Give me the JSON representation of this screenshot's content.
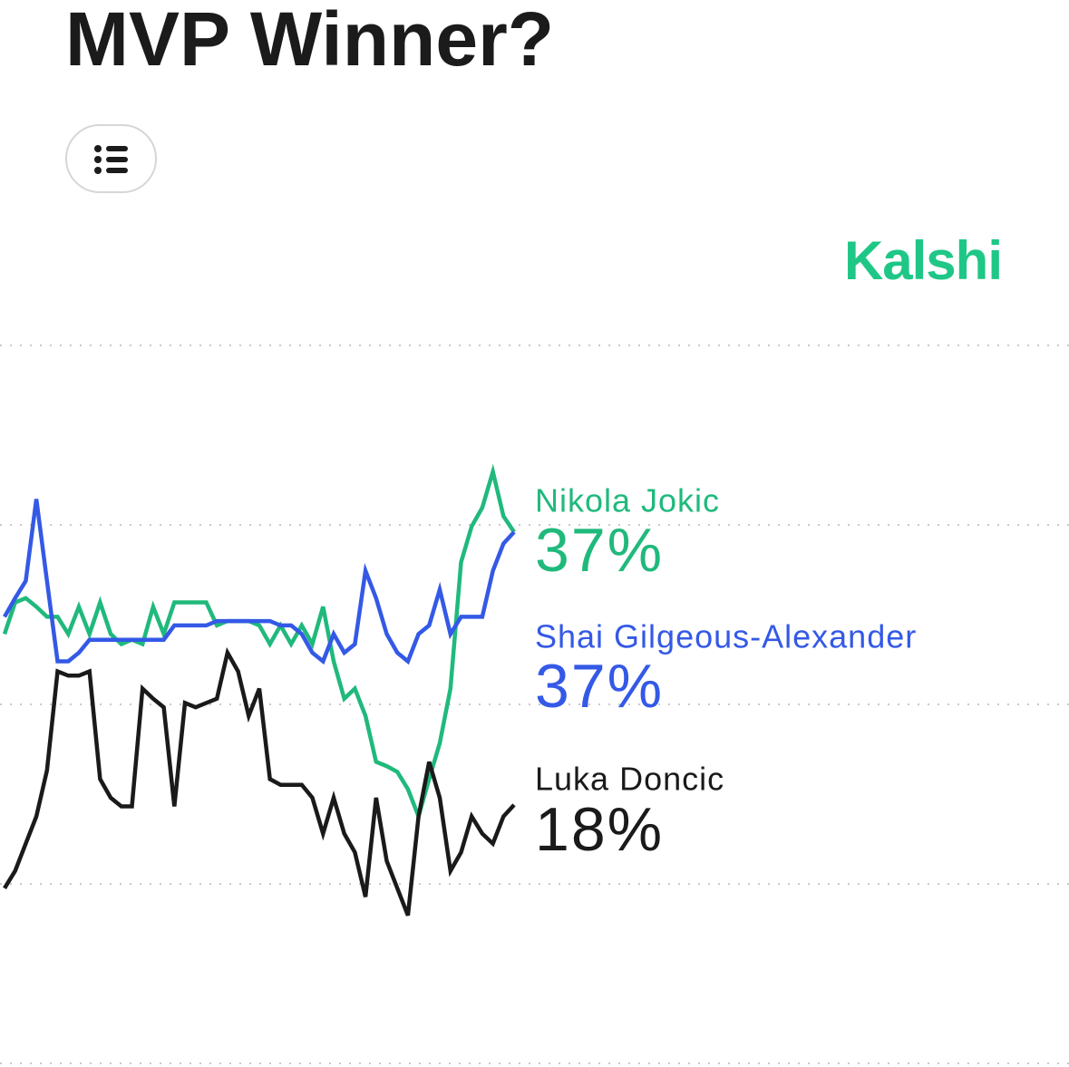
{
  "chart_data": {
    "type": "line",
    "title": "MVP Winner?",
    "brand": "Kalshi",
    "categories": [
      null,
      null,
      null,
      null,
      null,
      null,
      null,
      null,
      null,
      null,
      null,
      null,
      null,
      null,
      null,
      null,
      null,
      null,
      null,
      null,
      null,
      null,
      null,
      null,
      null,
      null,
      null,
      null,
      null,
      null,
      null,
      null,
      null,
      null,
      null,
      null,
      null,
      null,
      null,
      null,
      null,
      null,
      null,
      null,
      null,
      null,
      null,
      null,
      null
    ],
    "ylim": [
      0,
      50
    ],
    "yticks": [
      0,
      12.5,
      25,
      37.5,
      50
    ],
    "grid": true,
    "series": [
      {
        "name": "Nikola Jokic",
        "color": "#20b97c",
        "values": [
          29.9,
          32.1,
          32.4,
          31.8,
          31.1,
          31.1,
          29.9,
          31.8,
          29.9,
          32.1,
          29.9,
          29.2,
          29.5,
          29.2,
          31.8,
          29.9,
          32.1,
          32.1,
          32.1,
          32.1,
          30.5,
          30.8,
          30.8,
          30.8,
          30.5,
          29.2,
          30.5,
          29.2,
          30.5,
          29.2,
          31.8,
          28.0,
          25.4,
          26.1,
          24.2,
          21.0,
          20.7,
          20.3,
          19.1,
          17.2,
          19.8,
          22.3,
          26.1,
          34.9,
          37.4,
          38.7,
          41.2,
          38.1,
          37
        ],
        "value_labels": [
          null,
          null,
          null,
          null,
          null,
          null,
          null,
          null,
          null,
          null,
          null,
          null,
          null,
          null,
          null,
          null,
          null,
          null,
          null,
          null,
          null,
          null,
          null,
          null,
          null,
          null,
          null,
          null,
          null,
          null,
          null,
          null,
          null,
          null,
          null,
          null,
          null,
          null,
          null,
          null,
          null,
          null,
          null,
          null,
          null,
          null,
          null,
          null,
          "37%"
        ]
      },
      {
        "name": "Shai Gilgeous-Alexander",
        "color": "#3459e6",
        "values": [
          31.1,
          32.4,
          33.6,
          39.3,
          33.6,
          28.0,
          28.0,
          28.6,
          29.5,
          29.5,
          29.5,
          29.5,
          29.5,
          29.5,
          29.5,
          29.5,
          30.5,
          30.5,
          30.5,
          30.5,
          30.8,
          30.8,
          30.8,
          30.8,
          30.8,
          30.8,
          30.5,
          30.5,
          29.9,
          28.6,
          28.0,
          29.9,
          28.6,
          29.2,
          34.3,
          32.4,
          29.9,
          28.6,
          28.0,
          29.9,
          30.5,
          33.0,
          29.9,
          31.1,
          31.1,
          31.1,
          34.3,
          36.2,
          37
        ],
        "value_labels": [
          null,
          null,
          null,
          null,
          null,
          null,
          null,
          null,
          null,
          null,
          null,
          null,
          null,
          null,
          null,
          null,
          null,
          null,
          null,
          null,
          null,
          null,
          null,
          null,
          null,
          null,
          null,
          null,
          null,
          null,
          null,
          null,
          null,
          null,
          null,
          null,
          null,
          null,
          null,
          null,
          null,
          null,
          null,
          null,
          null,
          null,
          null,
          null,
          "37%"
        ]
      },
      {
        "name": "Luka Doncic",
        "color": "#1a1a1a",
        "values": [
          12.2,
          13.4,
          15.3,
          17.2,
          20.4,
          27.3,
          27.0,
          27.0,
          27.3,
          19.8,
          18.5,
          17.9,
          17.9,
          26.1,
          25.4,
          24.8,
          17.9,
          25.1,
          24.8,
          25.1,
          25.4,
          28.6,
          27.3,
          24.2,
          26.1,
          19.8,
          19.4,
          19.4,
          19.4,
          18.5,
          16.0,
          18.5,
          16.0,
          14.7,
          11.6,
          18.5,
          14.1,
          12.2,
          10.3,
          17.2,
          21.0,
          18.5,
          13.4,
          14.7,
          17.2,
          16.0,
          15.3,
          17.2,
          18
        ],
        "value_labels": [
          null,
          null,
          null,
          null,
          null,
          null,
          null,
          null,
          null,
          null,
          null,
          null,
          null,
          null,
          null,
          null,
          null,
          null,
          null,
          null,
          null,
          null,
          null,
          null,
          null,
          null,
          null,
          null,
          null,
          null,
          null,
          null,
          null,
          null,
          null,
          null,
          null,
          null,
          null,
          null,
          null,
          null,
          null,
          null,
          null,
          null,
          null,
          null,
          "18%"
        ]
      }
    ]
  }
}
